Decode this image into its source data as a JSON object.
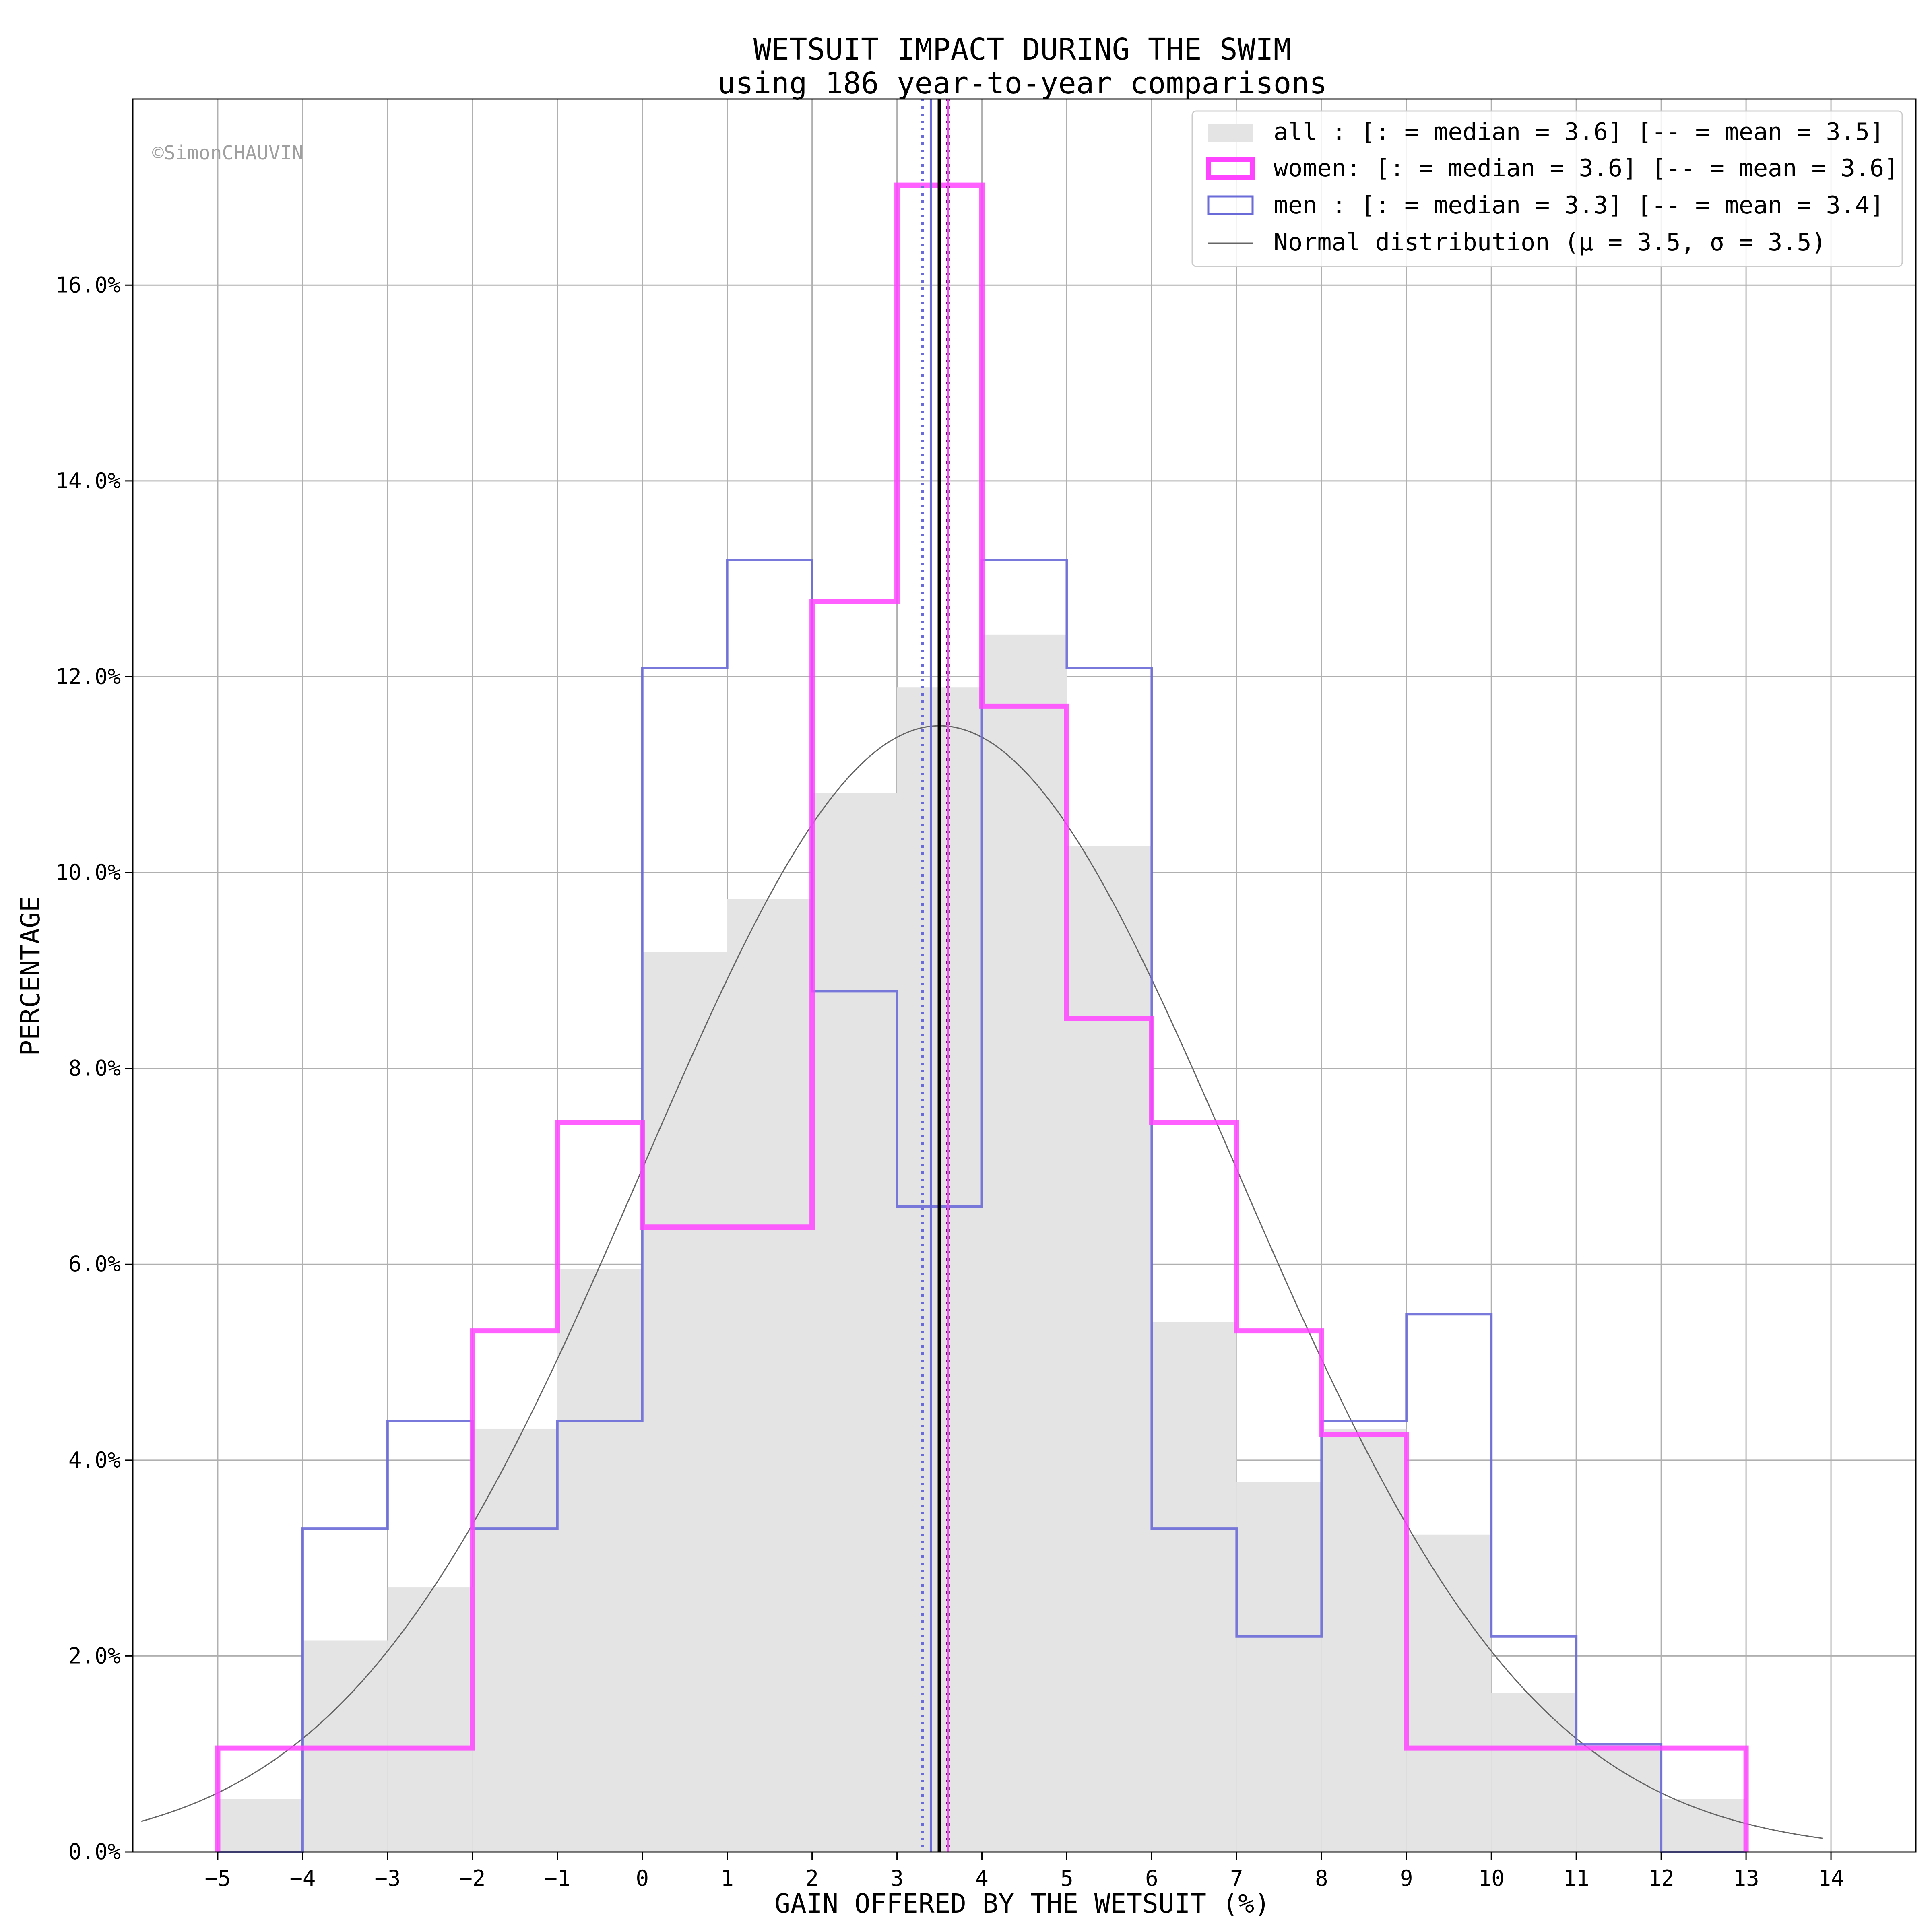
{
  "chart_data": {
    "type": "bar",
    "title": "WETSUIT IMPACT DURING THE SWIM",
    "subtitle": "using 186 year-to-year comparisons",
    "xlabel": "GAIN OFFERED BY THE WETSUIT (%)",
    "ylabel": "PERCENTAGE",
    "copyright": "©SimonCHAUVIN",
    "xlim": [
      -6,
      15
    ],
    "ylim": [
      0,
      17.9
    ],
    "x_ticks": [
      "−5",
      "−4",
      "−3",
      "−2",
      "−1",
      "0",
      "1",
      "2",
      "3",
      "4",
      "5",
      "6",
      "7",
      "8",
      "9",
      "10",
      "11",
      "12",
      "13",
      "14"
    ],
    "y_ticks": [
      "0.0%",
      "2.0%",
      "4.0%",
      "6.0%",
      "8.0%",
      "10.0%",
      "12.0%",
      "14.0%",
      "16.0%"
    ],
    "grid": true,
    "legend_position": "top-right",
    "bin_edges": [
      -5,
      -4,
      -3,
      -2,
      -1,
      0,
      1,
      2,
      3,
      4,
      5,
      6,
      7,
      8,
      9,
      10,
      11,
      12,
      13
    ],
    "series": [
      {
        "name": "all",
        "legend": "all  : [: = median = 3.6] [-- = mean = 3.5]",
        "style": "filled",
        "color": "#e4e4e4",
        "values": [
          0.54,
          2.16,
          2.7,
          4.32,
          5.95,
          9.19,
          9.73,
          10.81,
          11.89,
          12.43,
          10.27,
          5.41,
          3.78,
          4.32,
          3.24,
          1.62,
          1.08,
          0.54
        ],
        "median": 3.6,
        "mean": 3.5
      },
      {
        "name": "women",
        "legend": "women: [: = median = 3.6] [-- = mean = 3.6]",
        "style": "step-thick",
        "color": "#ff44ff",
        "values": [
          1.06,
          1.06,
          1.06,
          5.32,
          7.45,
          6.38,
          6.38,
          12.77,
          17.02,
          11.7,
          8.51,
          7.45,
          5.32,
          4.26,
          1.06,
          1.06,
          1.06,
          1.06
        ],
        "median": 3.6,
        "mean": 3.6
      },
      {
        "name": "men",
        "legend": "men  : [: = median = 3.3] [-- = mean = 3.4]",
        "style": "step-thin",
        "color": "#6a6ad8",
        "values": [
          0,
          3.3,
          4.4,
          3.3,
          4.4,
          12.09,
          13.19,
          8.79,
          6.59,
          13.19,
          12.09,
          3.3,
          2.2,
          4.4,
          5.49,
          2.2,
          1.1,
          0
        ],
        "median": 3.3,
        "mean": 3.4
      }
    ],
    "normal": {
      "legend": "Normal distribution (μ = 3.5, σ = 3.5)",
      "mu": 3.5,
      "sigma": 3.5,
      "peak_percent": 11.5,
      "x_range": [
        -5.9,
        13.9
      ],
      "color": "#666666"
    }
  }
}
